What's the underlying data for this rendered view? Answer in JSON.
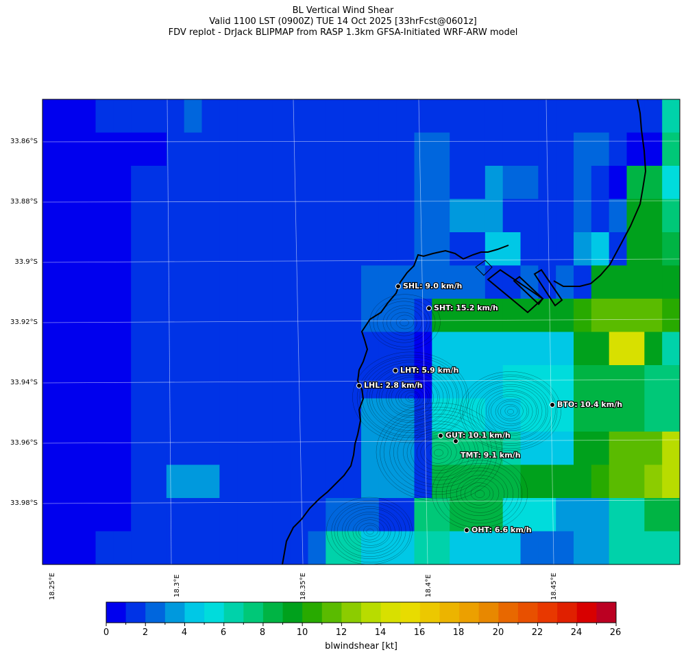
{
  "title": {
    "line1": "BL Vertical Wind Shear",
    "line2": "Valid 1100 LST (0900Z) TUE 14 Oct 2025 [33hrFcst@0601z]",
    "line3": "FDV replot - DrJack BLIPMAP from RASP 1.3km GFSA-Initiated WRF-ARW model"
  },
  "lat_labels": [
    "33.86°S",
    "33.88°S",
    "33.9°S",
    "33.92°S",
    "33.94°S",
    "33.96°S",
    "33.98°S"
  ],
  "lon_labels": [
    "18.25°E",
    "18.3°E",
    "18.35°E",
    "18.4°E",
    "18.45°E"
  ],
  "stations": [
    {
      "label": "SHL: 9.0 km/h"
    },
    {
      "label": "SHT: 15.2 km/h"
    },
    {
      "label": "LHT: 5.9 km/h"
    },
    {
      "label": "LHL: 2.8 km/h"
    },
    {
      "label": "BTO: 10.4 km/h"
    },
    {
      "label": "GUT: 10.1 km/h"
    },
    {
      "label": "TMT: 9.1 km/h"
    },
    {
      "label": "OHT: 6.6 km/h"
    }
  ],
  "colorbar": {
    "label": "blwindshear [kt]",
    "ticks": [
      "0",
      "2",
      "4",
      "6",
      "8",
      "10",
      "12",
      "14",
      "16",
      "18",
      "20",
      "22",
      "24",
      "26"
    ],
    "colors": [
      "#0000ee",
      "#0033e6",
      "#0066dd",
      "#0099dd",
      "#00c8e6",
      "#00dcdc",
      "#00d2aa",
      "#00c878",
      "#00b444",
      "#00a11c",
      "#28aa00",
      "#5abb00",
      "#8ccc00",
      "#b8dc00",
      "#d8e000",
      "#e8dc00",
      "#ecc800",
      "#ecb400",
      "#eca000",
      "#e88800",
      "#e86800",
      "#e85000",
      "#e83800",
      "#e02000",
      "#d80000",
      "#bb0022"
    ]
  },
  "grid": {
    "rows": [
      [
        0,
        0,
        0,
        1,
        1,
        1,
        1,
        1,
        2,
        1,
        1,
        1,
        1,
        1,
        1,
        1,
        1,
        1,
        1,
        1,
        1,
        1,
        1,
        1,
        1,
        1,
        1,
        1,
        1,
        1,
        1,
        1,
        1,
        1,
        1,
        6
      ],
      [
        0,
        0,
        0,
        0,
        0,
        0,
        0,
        1,
        1,
        1,
        1,
        1,
        1,
        1,
        1,
        1,
        1,
        1,
        1,
        1,
        1,
        2,
        2,
        1,
        1,
        1,
        1,
        1,
        1,
        1,
        2,
        2,
        1,
        0,
        0,
        7
      ],
      [
        0,
        0,
        0,
        0,
        0,
        1,
        1,
        1,
        1,
        1,
        1,
        1,
        1,
        1,
        1,
        1,
        1,
        1,
        1,
        1,
        1,
        2,
        2,
        1,
        1,
        3,
        2,
        2,
        1,
        1,
        2,
        1,
        0,
        8,
        8,
        5
      ],
      [
        0,
        0,
        0,
        0,
        0,
        1,
        1,
        1,
        1,
        1,
        1,
        1,
        1,
        1,
        1,
        1,
        1,
        1,
        1,
        1,
        1,
        2,
        2,
        3,
        3,
        3,
        1,
        1,
        1,
        1,
        2,
        1,
        2,
        9,
        9,
        7
      ],
      [
        0,
        0,
        0,
        0,
        0,
        1,
        1,
        1,
        1,
        1,
        1,
        1,
        1,
        1,
        1,
        1,
        1,
        1,
        1,
        1,
        1,
        2,
        2,
        1,
        1,
        4,
        4,
        1,
        1,
        1,
        3,
        4,
        1,
        9,
        9,
        8
      ],
      [
        0,
        0,
        0,
        0,
        0,
        1,
        1,
        1,
        1,
        1,
        1,
        1,
        1,
        1,
        1,
        1,
        1,
        1,
        2,
        2,
        2,
        2,
        2,
        2,
        2,
        1,
        1,
        2,
        1,
        2,
        1,
        9,
        9,
        9,
        9,
        9
      ],
      [
        0,
        0,
        0,
        0,
        0,
        1,
        1,
        1,
        1,
        1,
        1,
        1,
        1,
        1,
        1,
        1,
        1,
        1,
        2,
        2,
        2,
        1,
        9,
        9,
        9,
        9,
        9,
        9,
        9,
        9,
        10,
        11,
        11,
        11,
        11,
        10
      ],
      [
        0,
        0,
        0,
        0,
        0,
        1,
        1,
        1,
        1,
        1,
        1,
        1,
        1,
        1,
        1,
        1,
        1,
        1,
        1,
        1,
        1,
        0,
        4,
        4,
        4,
        4,
        4,
        4,
        4,
        4,
        9,
        9,
        14,
        14,
        9,
        6
      ],
      [
        0,
        0,
        0,
        0,
        0,
        1,
        1,
        1,
        1,
        1,
        1,
        1,
        1,
        1,
        1,
        1,
        1,
        1,
        1,
        1,
        1,
        0,
        4,
        4,
        4,
        4,
        5,
        5,
        5,
        5,
        8,
        8,
        8,
        8,
        7,
        7
      ],
      [
        0,
        0,
        0,
        0,
        0,
        1,
        1,
        1,
        1,
        1,
        1,
        1,
        1,
        1,
        1,
        1,
        1,
        1,
        3,
        3,
        3,
        1,
        5,
        5,
        5,
        4,
        4,
        5,
        5,
        5,
        8,
        8,
        8,
        8,
        7,
        7
      ],
      [
        0,
        0,
        0,
        0,
        0,
        1,
        1,
        1,
        1,
        1,
        1,
        1,
        1,
        1,
        1,
        1,
        1,
        1,
        3,
        3,
        3,
        1,
        7,
        7,
        7,
        7,
        6,
        4,
        4,
        4,
        9,
        9,
        11,
        11,
        11,
        13
      ],
      [
        0,
        0,
        0,
        0,
        0,
        1,
        1,
        3,
        3,
        3,
        1,
        1,
        1,
        1,
        1,
        1,
        1,
        1,
        3,
        3,
        3,
        1,
        8,
        8,
        8,
        8,
        8,
        9,
        9,
        9,
        9,
        10,
        11,
        11,
        12,
        13
      ],
      [
        0,
        0,
        0,
        0,
        0,
        1,
        1,
        1,
        1,
        1,
        1,
        1,
        1,
        1,
        1,
        1,
        2,
        2,
        2,
        1,
        1,
        7,
        7,
        8,
        8,
        8,
        5,
        5,
        5,
        3,
        3,
        3,
        6,
        6,
        8,
        8
      ],
      [
        0,
        0,
        0,
        1,
        1,
        1,
        1,
        1,
        1,
        1,
        1,
        1,
        1,
        1,
        1,
        2,
        6,
        6,
        4,
        4,
        4,
        6,
        6,
        4,
        4,
        4,
        4,
        2,
        2,
        2,
        3,
        3,
        6,
        6,
        6,
        6
      ]
    ]
  }
}
